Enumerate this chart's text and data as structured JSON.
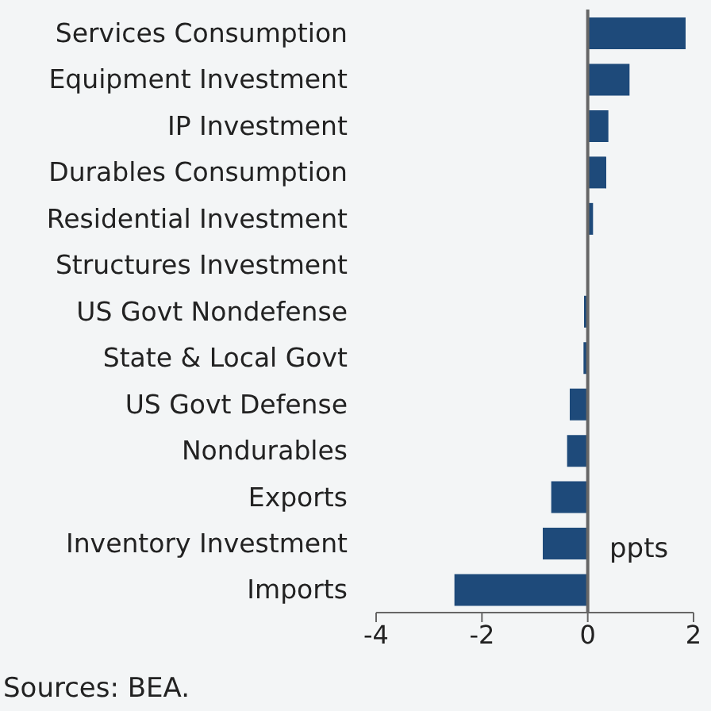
{
  "chart_data": {
    "type": "bar",
    "orientation": "horizontal",
    "categories": [
      "Services Consumption",
      "Equipment Investment",
      "IP Investment",
      "Durables Consumption",
      "Residential Investment",
      "Structures Investment",
      "US Govt Nondefense",
      "State & Local Govt",
      "US Govt Defense",
      "Nondurables",
      "Exports",
      "Inventory Investment",
      "Imports"
    ],
    "values": [
      1.85,
      0.79,
      0.39,
      0.35,
      0.1,
      0,
      -0.07,
      -0.08,
      -0.34,
      -0.39,
      -0.69,
      -0.85,
      -2.52
    ],
    "color": "#1e4a7a",
    "xlim": [
      -4,
      2
    ],
    "xticks": [
      -4,
      -2,
      0,
      2
    ],
    "xlabel": "ppts",
    "grid": false,
    "legend": false,
    "ref_lines": [
      {
        "axis": "x",
        "value": 0,
        "color": "#666666"
      }
    ],
    "annotations": [
      "Sources: BEA."
    ]
  }
}
